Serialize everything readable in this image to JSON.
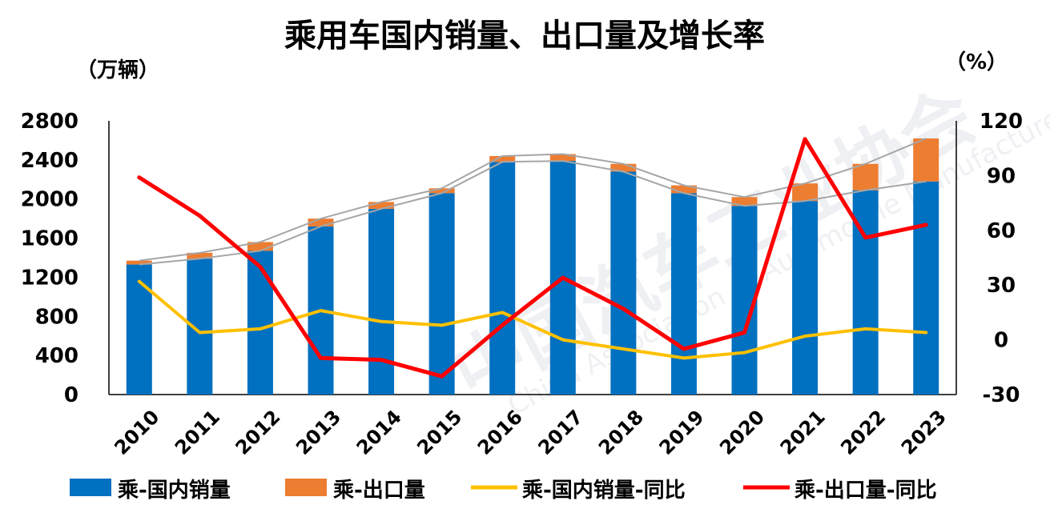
{
  "chart_data": {
    "type": "bar",
    "title": "乘用车国内销量、出口量及增长率",
    "y_left_label": "（万辆）",
    "y_right_label": "（%）",
    "categories": [
      "2010",
      "2011",
      "2012",
      "2013",
      "2014",
      "2015",
      "2016",
      "2017",
      "2018",
      "2019",
      "2020",
      "2021",
      "2022",
      "2023"
    ],
    "ylim_left": [
      0,
      2800
    ],
    "yticks_left": [
      0,
      400,
      800,
      1200,
      1600,
      2000,
      2400,
      2800
    ],
    "ylim_right": [
      -30,
      120
    ],
    "yticks_right": [
      -30,
      0,
      30,
      60,
      90,
      120
    ],
    "series": [
      {
        "name": "乘-国内销量",
        "kind": "stacked-bar",
        "axis": "left",
        "color": "#0070C0",
        "values": [
          1330,
          1390,
          1470,
          1720,
          1900,
          2060,
          2380,
          2390,
          2280,
          2060,
          1930,
          1980,
          2090,
          2180
        ]
      },
      {
        "name": "乘-出口量",
        "kind": "stacked-bar",
        "axis": "left",
        "color": "#ED7D31",
        "values": [
          40,
          60,
          90,
          80,
          70,
          50,
          60,
          70,
          80,
          80,
          90,
          180,
          270,
          440
        ]
      },
      {
        "name": "乘-国内销量-同比",
        "kind": "line",
        "axis": "right",
        "color": "#FFC000",
        "values": [
          32,
          4,
          6,
          16,
          10,
          8,
          15,
          0,
          -5,
          -10,
          -7,
          2,
          6,
          4
        ]
      },
      {
        "name": "乘-出口量-同比",
        "kind": "line",
        "axis": "right",
        "color": "#FF0000",
        "values": [
          89,
          68,
          40,
          -10,
          -11,
          -20,
          8,
          34,
          17,
          -5,
          4,
          110,
          56,
          63
        ]
      }
    ],
    "connector_lines": {
      "color": "#A6A6A6",
      "of": "bar tops"
    },
    "watermark": "中国汽车工业协会 China Association of Automobile Manufacturers",
    "grid": false,
    "legend_position": "bottom"
  }
}
